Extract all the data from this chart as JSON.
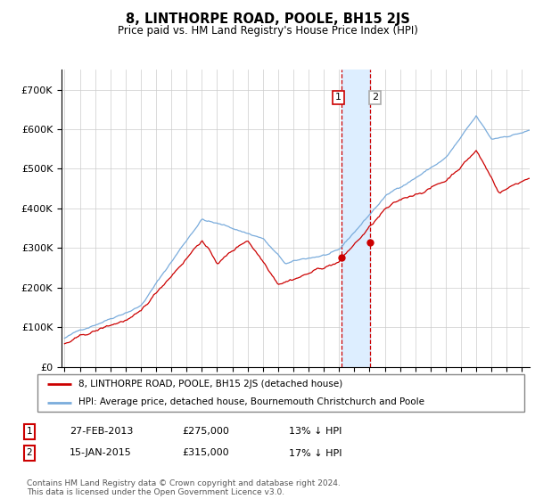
{
  "title": "8, LINTHORPE ROAD, POOLE, BH15 2JS",
  "subtitle": "Price paid vs. HM Land Registry's House Price Index (HPI)",
  "legend_line1": "8, LINTHORPE ROAD, POOLE, BH15 2JS (detached house)",
  "legend_line2": "HPI: Average price, detached house, Bournemouth Christchurch and Poole",
  "table_rows": [
    {
      "num": "1",
      "date": "27-FEB-2013",
      "price": "£275,000",
      "change": "13% ↓ HPI"
    },
    {
      "num": "2",
      "date": "15-JAN-2015",
      "price": "£315,000",
      "change": "17% ↓ HPI"
    }
  ],
  "footnote": "Contains HM Land Registry data © Crown copyright and database right 2024.\nThis data is licensed under the Open Government Licence v3.0.",
  "sale1_date": 2013.15,
  "sale1_price": 275000,
  "sale2_date": 2015.04,
  "sale2_price": 315000,
  "red_color": "#cc0000",
  "blue_color": "#7aacdc",
  "shade_color": "#ddeeff",
  "ylim": [
    0,
    750000
  ],
  "xlim_start": 1994.8,
  "xlim_end": 2025.5,
  "xtick_years": [
    1995,
    1996,
    1997,
    1998,
    1999,
    2000,
    2001,
    2002,
    2003,
    2004,
    2005,
    2006,
    2007,
    2008,
    2009,
    2010,
    2011,
    2012,
    2013,
    2014,
    2015,
    2016,
    2017,
    2018,
    2019,
    2020,
    2021,
    2022,
    2023,
    2024,
    2025
  ],
  "yticks": [
    0,
    100000,
    200000,
    300000,
    400000,
    500000,
    600000,
    700000
  ],
  "ylabels": [
    "£0",
    "£100K",
    "£200K",
    "£300K",
    "£400K",
    "£500K",
    "£600K",
    "£700K"
  ]
}
